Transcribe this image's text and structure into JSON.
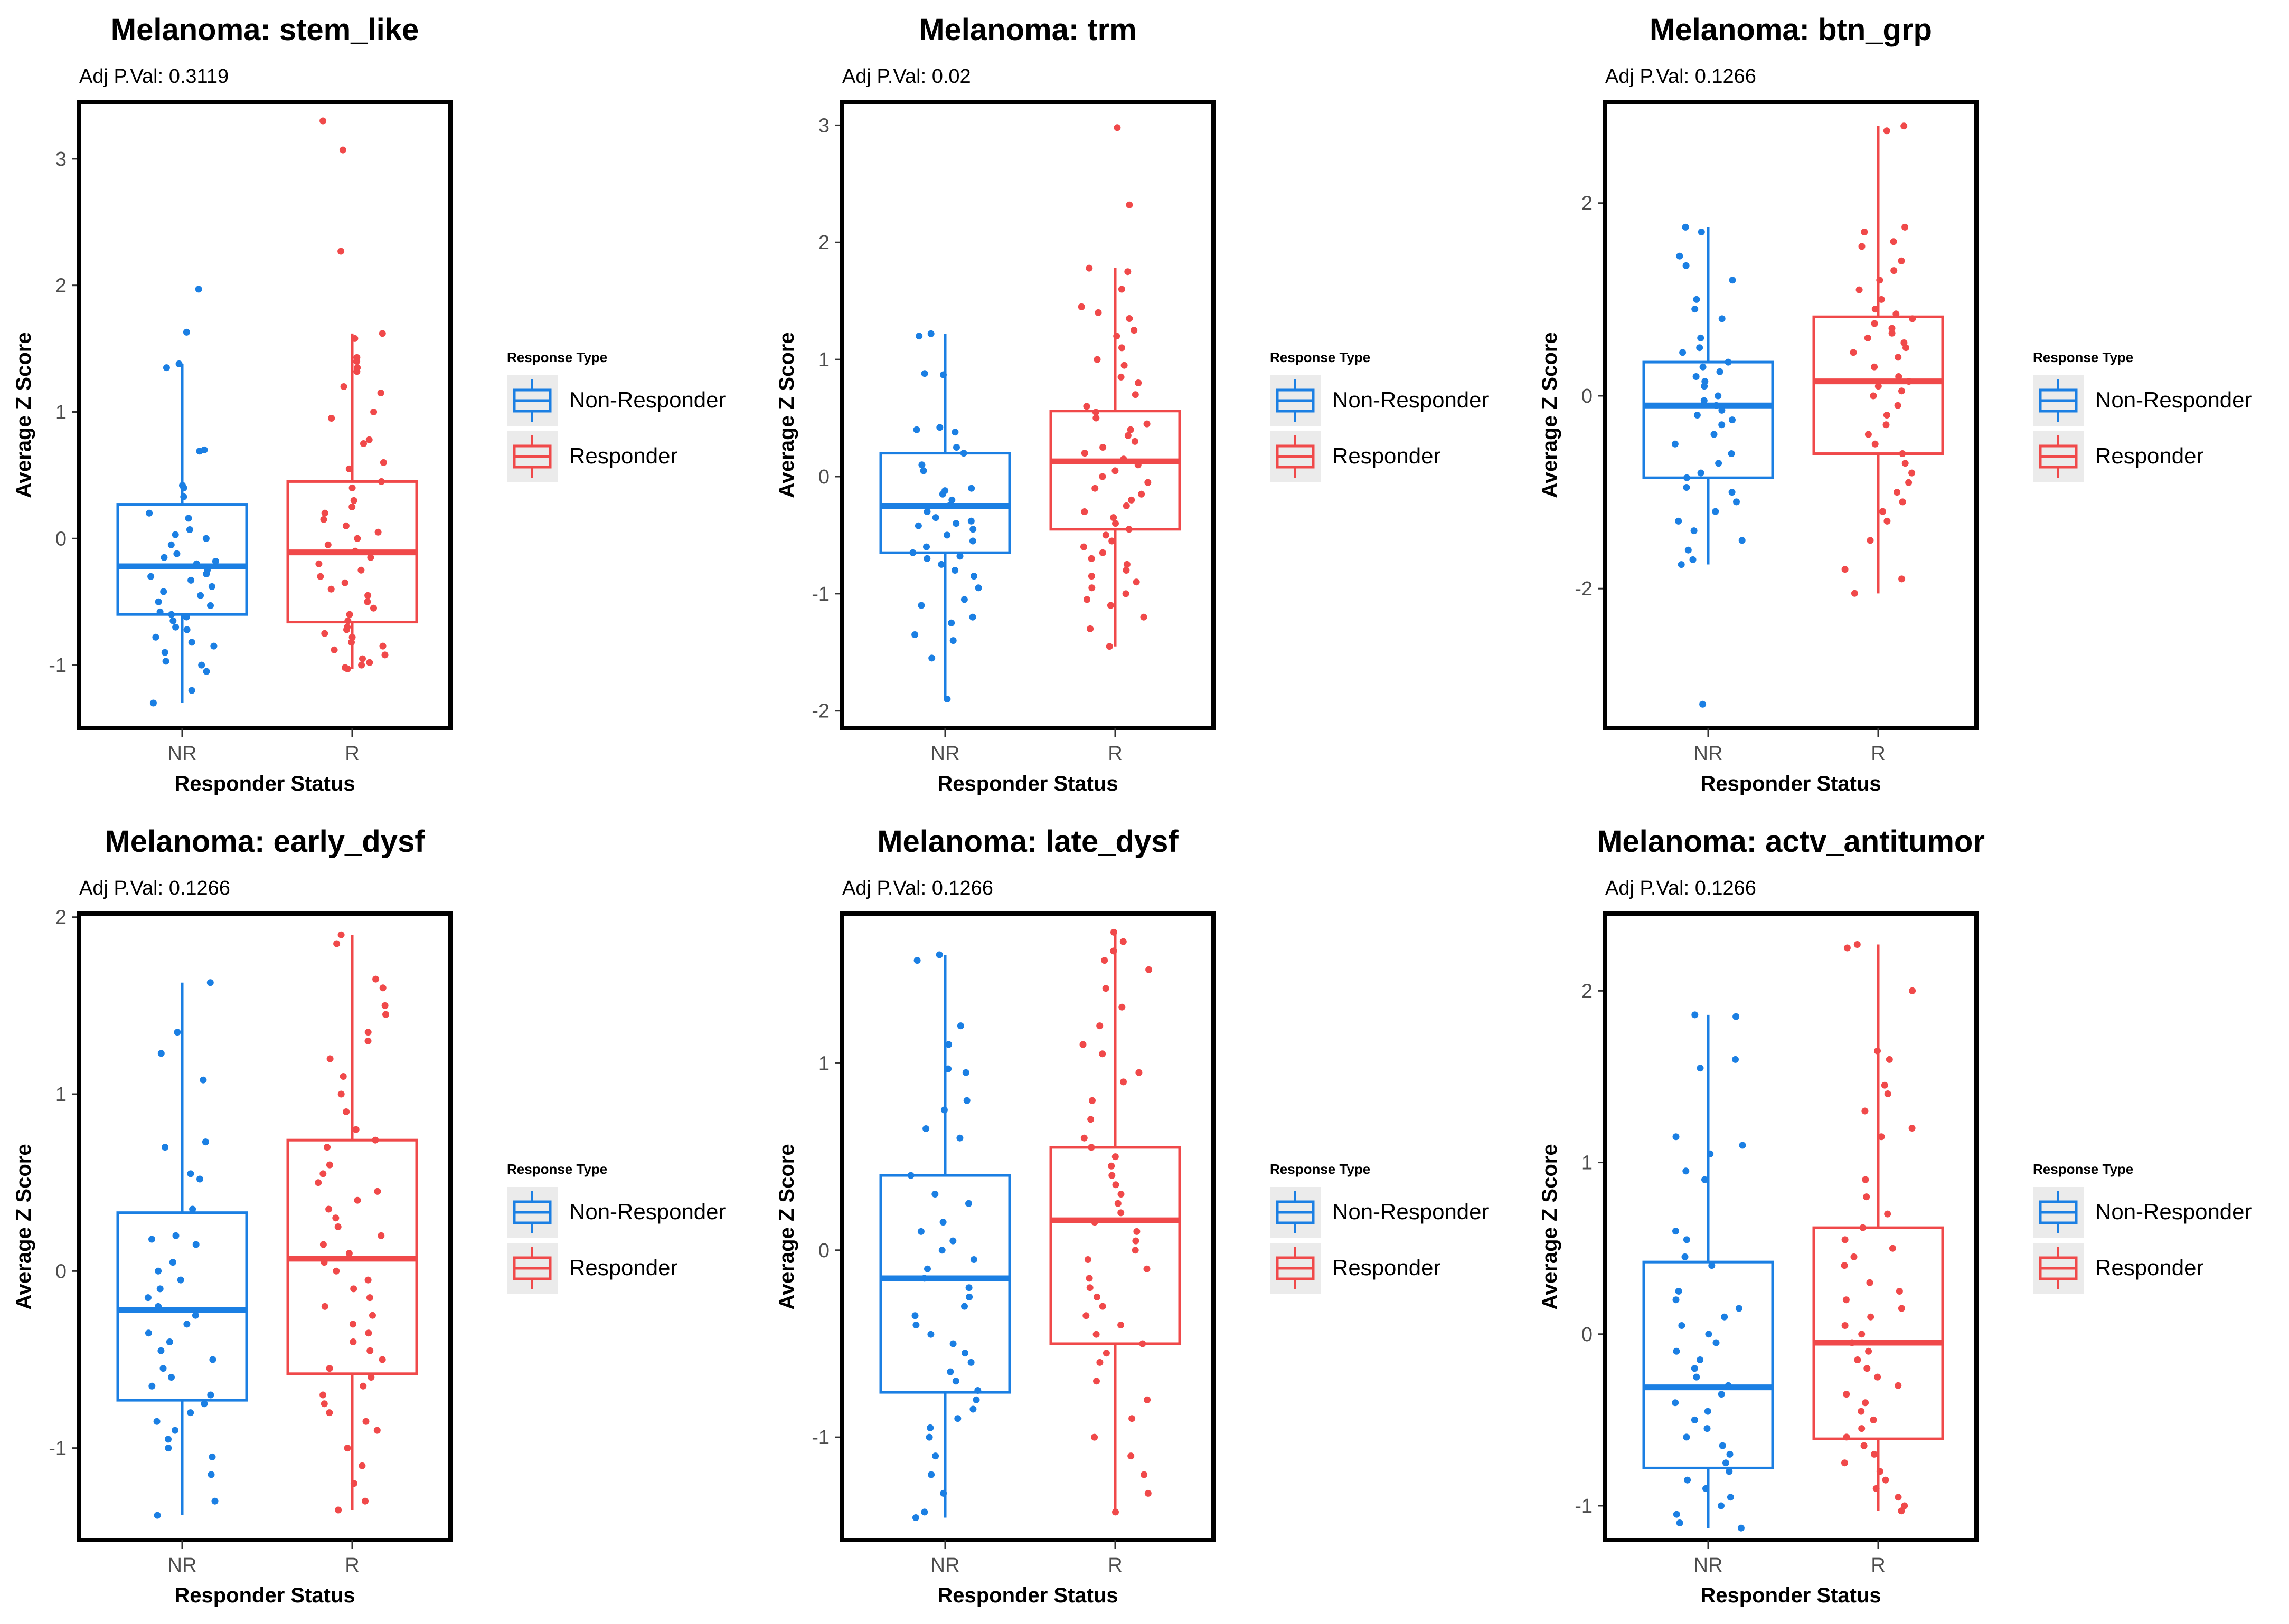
{
  "colors": {
    "nr": "#1b7fe3",
    "r": "#f0494a",
    "legend_bg": "#ebebeb",
    "text": "#4d4d4d"
  },
  "charts": [
    {
      "title": "Melanoma: stem_like",
      "subtitle": "Adj P.Val: 0.3119",
      "legend_title": "Response Type",
      "legend_items": [
        "Non-Responder",
        "Responder"
      ],
      "chart_data": {
        "type": "box",
        "categories": [
          "NR",
          "R"
        ],
        "xlabel": "Responder Status",
        "ylabel": "Average Z Score",
        "ylim": [
          -1.5,
          3.45
        ],
        "yticks": [
          -1,
          0,
          1,
          2,
          3
        ],
        "grid": false,
        "legend_position": "right",
        "boxes": [
          {
            "category": "NR",
            "series": "Non-Responder",
            "whisker_low": -1.3,
            "q1": -0.6,
            "median": -0.22,
            "q3": 0.27,
            "whisker_high": 1.38
          },
          {
            "category": "R",
            "series": "Responder",
            "whisker_low": -1.03,
            "q1": -0.66,
            "median": -0.11,
            "q3": 0.45,
            "whisker_high": 1.62
          }
        ],
        "points": {
          "NR": [
            1.97,
            1.63,
            1.38,
            1.35,
            0.7,
            0.69,
            0.42,
            0.4,
            0.33,
            0.2,
            0.16,
            0.07,
            0.03,
            0.0,
            -0.05,
            -0.12,
            -0.15,
            -0.18,
            -0.2,
            -0.25,
            -0.28,
            -0.3,
            -0.33,
            -0.38,
            -0.42,
            -0.45,
            -0.5,
            -0.53,
            -0.58,
            -0.6,
            -0.62,
            -0.65,
            -0.7,
            -0.72,
            -0.78,
            -0.82,
            -0.85,
            -0.9,
            -0.97,
            -1.0,
            -1.05,
            -1.2,
            -1.3
          ],
          "R": [
            3.3,
            3.07,
            2.27,
            1.62,
            1.58,
            1.43,
            1.4,
            1.35,
            1.32,
            1.2,
            1.15,
            1.0,
            0.95,
            0.78,
            0.75,
            0.6,
            0.55,
            0.45,
            0.4,
            0.3,
            0.25,
            0.2,
            0.15,
            0.1,
            0.05,
            0.0,
            -0.05,
            -0.1,
            -0.15,
            -0.2,
            -0.25,
            -0.3,
            -0.35,
            -0.4,
            -0.45,
            -0.5,
            -0.55,
            -0.6,
            -0.65,
            -0.7,
            -0.72,
            -0.75,
            -0.78,
            -0.82,
            -0.85,
            -0.88,
            -0.92,
            -0.95,
            -0.98,
            -1.0,
            -1.02,
            -1.03
          ]
        }
      }
    },
    {
      "title": "Melanoma: trm",
      "subtitle": "Adj P.Val: 0.02",
      "legend_title": "Response Type",
      "legend_items": [
        "Non-Responder",
        "Responder"
      ],
      "chart_data": {
        "type": "box",
        "categories": [
          "NR",
          "R"
        ],
        "xlabel": "Responder Status",
        "ylabel": "Average Z Score",
        "ylim": [
          -2.15,
          3.2
        ],
        "yticks": [
          -2,
          -1,
          0,
          1,
          2,
          3
        ],
        "grid": false,
        "legend_position": "right",
        "boxes": [
          {
            "category": "NR",
            "series": "Non-Responder",
            "whisker_low": -1.9,
            "q1": -0.65,
            "median": -0.25,
            "q3": 0.2,
            "whisker_high": 1.22
          },
          {
            "category": "R",
            "series": "Responder",
            "whisker_low": -1.45,
            "q1": -0.45,
            "median": 0.13,
            "q3": 0.56,
            "whisker_high": 1.78
          }
        ],
        "points": {
          "NR": [
            1.22,
            1.2,
            0.88,
            0.87,
            0.42,
            0.4,
            0.38,
            0.25,
            0.2,
            0.1,
            0.05,
            -0.1,
            -0.12,
            -0.15,
            -0.2,
            -0.25,
            -0.3,
            -0.35,
            -0.38,
            -0.4,
            -0.42,
            -0.45,
            -0.5,
            -0.55,
            -0.6,
            -0.65,
            -0.68,
            -0.7,
            -0.75,
            -0.8,
            -0.85,
            -0.95,
            -1.05,
            -1.1,
            -1.2,
            -1.25,
            -1.35,
            -1.4,
            -1.55,
            -1.9
          ],
          "R": [
            2.98,
            2.32,
            1.78,
            1.75,
            1.6,
            1.45,
            1.4,
            1.35,
            1.25,
            1.2,
            1.1,
            1.0,
            0.95,
            0.85,
            0.8,
            0.7,
            0.6,
            0.55,
            0.5,
            0.45,
            0.4,
            0.35,
            0.3,
            0.25,
            0.2,
            0.15,
            0.1,
            0.05,
            0.0,
            -0.05,
            -0.1,
            -0.15,
            -0.2,
            -0.25,
            -0.3,
            -0.35,
            -0.4,
            -0.45,
            -0.5,
            -0.55,
            -0.6,
            -0.65,
            -0.7,
            -0.75,
            -0.8,
            -0.85,
            -0.9,
            -0.95,
            -1.0,
            -1.05,
            -1.1,
            -1.2,
            -1.3,
            -1.45
          ]
        }
      }
    },
    {
      "title": "Melanoma: btn_grp",
      "subtitle": "Adj P.Val: 0.1266",
      "legend_title": "Response Type",
      "legend_items": [
        "Non-Responder",
        "Responder"
      ],
      "chart_data": {
        "type": "box",
        "categories": [
          "NR",
          "R"
        ],
        "xlabel": "Responder Status",
        "ylabel": "Average Z Score",
        "ylim": [
          -3.45,
          3.05
        ],
        "yticks": [
          -2,
          0,
          2
        ],
        "grid": false,
        "legend_position": "right",
        "boxes": [
          {
            "category": "NR",
            "series": "Non-Responder",
            "whisker_low": -1.75,
            "q1": -0.85,
            "median": -0.1,
            "q3": 0.35,
            "whisker_high": 1.75
          },
          {
            "category": "R",
            "series": "Responder",
            "whisker_low": -2.05,
            "q1": -0.6,
            "median": 0.15,
            "q3": 0.82,
            "whisker_high": 2.8
          }
        ],
        "points": {
          "NR": [
            1.75,
            1.7,
            1.45,
            1.35,
            1.2,
            1.0,
            0.9,
            0.8,
            0.6,
            0.5,
            0.45,
            0.35,
            0.3,
            0.25,
            0.2,
            0.15,
            0.1,
            0.0,
            -0.05,
            -0.1,
            -0.15,
            -0.2,
            -0.25,
            -0.3,
            -0.4,
            -0.5,
            -0.6,
            -0.7,
            -0.8,
            -0.85,
            -0.95,
            -1.0,
            -1.1,
            -1.2,
            -1.3,
            -1.4,
            -1.5,
            -1.6,
            -1.7,
            -1.75,
            -3.2
          ],
          "R": [
            2.8,
            2.75,
            1.75,
            1.7,
            1.6,
            1.55,
            1.4,
            1.3,
            1.2,
            1.1,
            1.0,
            0.9,
            0.85,
            0.8,
            0.75,
            0.7,
            0.65,
            0.6,
            0.55,
            0.5,
            0.45,
            0.4,
            0.3,
            0.2,
            0.15,
            0.1,
            0.05,
            0.0,
            -0.1,
            -0.2,
            -0.3,
            -0.4,
            -0.5,
            -0.6,
            -0.7,
            -0.8,
            -0.9,
            -1.0,
            -1.1,
            -1.2,
            -1.3,
            -1.5,
            -1.8,
            -1.9,
            -2.05
          ]
        }
      }
    },
    {
      "title": "Melanoma: early_dysf",
      "subtitle": "Adj P.Val: 0.1266",
      "legend_title": "Response Type",
      "legend_items": [
        "Non-Responder",
        "Responder"
      ],
      "chart_data": {
        "type": "box",
        "categories": [
          "NR",
          "R"
        ],
        "xlabel": "Responder Status",
        "ylabel": "Average Z Score",
        "ylim": [
          -1.52,
          2.02
        ],
        "yticks": [
          -1,
          0,
          1,
          2
        ],
        "grid": false,
        "legend_position": "right",
        "boxes": [
          {
            "category": "NR",
            "series": "Non-Responder",
            "whisker_low": -1.38,
            "q1": -0.73,
            "median": -0.22,
            "q3": 0.33,
            "whisker_high": 1.63
          },
          {
            "category": "R",
            "series": "Responder",
            "whisker_low": -1.35,
            "q1": -0.58,
            "median": 0.07,
            "q3": 0.74,
            "whisker_high": 1.9
          }
        ],
        "points": {
          "NR": [
            1.63,
            1.35,
            1.23,
            1.08,
            0.73,
            0.7,
            0.55,
            0.52,
            0.35,
            0.2,
            0.18,
            0.15,
            0.05,
            0.0,
            -0.05,
            -0.1,
            -0.15,
            -0.2,
            -0.25,
            -0.3,
            -0.35,
            -0.4,
            -0.45,
            -0.5,
            -0.55,
            -0.6,
            -0.65,
            -0.7,
            -0.75,
            -0.8,
            -0.85,
            -0.9,
            -0.95,
            -1.0,
            -1.05,
            -1.15,
            -1.3,
            -1.38
          ],
          "R": [
            1.9,
            1.85,
            1.65,
            1.6,
            1.5,
            1.45,
            1.35,
            1.3,
            1.2,
            1.1,
            1.0,
            0.9,
            0.8,
            0.74,
            0.7,
            0.6,
            0.55,
            0.5,
            0.45,
            0.4,
            0.35,
            0.3,
            0.25,
            0.2,
            0.15,
            0.1,
            0.05,
            0.0,
            -0.05,
            -0.1,
            -0.15,
            -0.2,
            -0.25,
            -0.3,
            -0.35,
            -0.4,
            -0.45,
            -0.5,
            -0.55,
            -0.6,
            -0.65,
            -0.7,
            -0.75,
            -0.8,
            -0.85,
            -0.9,
            -1.0,
            -1.1,
            -1.2,
            -1.3,
            -1.35
          ]
        }
      }
    },
    {
      "title": "Melanoma: late_dysf",
      "subtitle": "Adj P.Val: 0.1266",
      "legend_title": "Response Type",
      "legend_items": [
        "Non-Responder",
        "Responder"
      ],
      "chart_data": {
        "type": "box",
        "categories": [
          "NR",
          "R"
        ],
        "xlabel": "Responder Status",
        "ylabel": "Average Z Score",
        "ylim": [
          -1.55,
          1.8
        ],
        "yticks": [
          -1,
          0,
          1
        ],
        "grid": false,
        "legend_position": "right",
        "boxes": [
          {
            "category": "NR",
            "series": "Non-Responder",
            "whisker_low": -1.43,
            "q1": -0.76,
            "median": -0.15,
            "q3": 0.4,
            "whisker_high": 1.58
          },
          {
            "category": "R",
            "series": "Responder",
            "whisker_low": -1.4,
            "q1": -0.5,
            "median": 0.16,
            "q3": 0.55,
            "whisker_high": 1.7
          }
        ],
        "points": {
          "NR": [
            1.58,
            1.55,
            1.2,
            1.1,
            0.97,
            0.95,
            0.8,
            0.75,
            0.65,
            0.6,
            0.4,
            0.3,
            0.25,
            0.15,
            0.1,
            0.05,
            0.0,
            -0.05,
            -0.1,
            -0.15,
            -0.2,
            -0.25,
            -0.3,
            -0.35,
            -0.4,
            -0.45,
            -0.5,
            -0.55,
            -0.6,
            -0.65,
            -0.7,
            -0.75,
            -0.8,
            -0.85,
            -0.9,
            -0.95,
            -1.0,
            -1.1,
            -1.2,
            -1.3,
            -1.4,
            -1.43
          ],
          "R": [
            1.7,
            1.65,
            1.6,
            1.55,
            1.5,
            1.4,
            1.3,
            1.2,
            1.1,
            1.05,
            0.95,
            0.9,
            0.8,
            0.7,
            0.6,
            0.55,
            0.5,
            0.45,
            0.4,
            0.35,
            0.3,
            0.25,
            0.2,
            0.15,
            0.1,
            0.05,
            0.0,
            -0.05,
            -0.1,
            -0.15,
            -0.2,
            -0.25,
            -0.3,
            -0.35,
            -0.4,
            -0.45,
            -0.5,
            -0.55,
            -0.6,
            -0.7,
            -0.8,
            -0.9,
            -1.0,
            -1.1,
            -1.2,
            -1.3,
            -1.4
          ]
        }
      }
    },
    {
      "title": "Melanoma: actv_antitumor",
      "subtitle": "Adj P.Val: 0.1266",
      "legend_title": "Response Type",
      "legend_items": [
        "Non-Responder",
        "Responder"
      ],
      "chart_data": {
        "type": "box",
        "categories": [
          "NR",
          "R"
        ],
        "xlabel": "Responder Status",
        "ylabel": "Average Z Score",
        "ylim": [
          -1.2,
          2.45
        ],
        "yticks": [
          -1,
          0,
          1,
          2
        ],
        "grid": false,
        "legend_position": "right",
        "boxes": [
          {
            "category": "NR",
            "series": "Non-Responder",
            "whisker_low": -1.13,
            "q1": -0.78,
            "median": -0.31,
            "q3": 0.42,
            "whisker_high": 1.86
          },
          {
            "category": "R",
            "series": "Responder",
            "whisker_low": -1.03,
            "q1": -0.61,
            "median": -0.05,
            "q3": 0.62,
            "whisker_high": 2.27
          }
        ],
        "points": {
          "NR": [
            1.86,
            1.85,
            1.6,
            1.55,
            1.15,
            1.1,
            1.05,
            0.95,
            0.9,
            0.6,
            0.55,
            0.45,
            0.4,
            0.25,
            0.2,
            0.15,
            0.1,
            0.05,
            0.0,
            -0.05,
            -0.1,
            -0.15,
            -0.2,
            -0.25,
            -0.3,
            -0.35,
            -0.4,
            -0.45,
            -0.5,
            -0.55,
            -0.6,
            -0.65,
            -0.7,
            -0.75,
            -0.8,
            -0.85,
            -0.9,
            -0.95,
            -1.0,
            -1.05,
            -1.1,
            -1.13
          ],
          "R": [
            2.27,
            2.25,
            2.0,
            1.65,
            1.6,
            1.45,
            1.4,
            1.3,
            1.2,
            1.15,
            0.9,
            0.8,
            0.7,
            0.62,
            0.55,
            0.5,
            0.45,
            0.4,
            0.3,
            0.25,
            0.2,
            0.15,
            0.1,
            0.05,
            0.0,
            -0.05,
            -0.1,
            -0.15,
            -0.2,
            -0.25,
            -0.3,
            -0.35,
            -0.4,
            -0.45,
            -0.5,
            -0.55,
            -0.6,
            -0.65,
            -0.7,
            -0.75,
            -0.8,
            -0.85,
            -0.9,
            -0.95,
            -1.0,
            -1.03
          ]
        }
      }
    }
  ]
}
